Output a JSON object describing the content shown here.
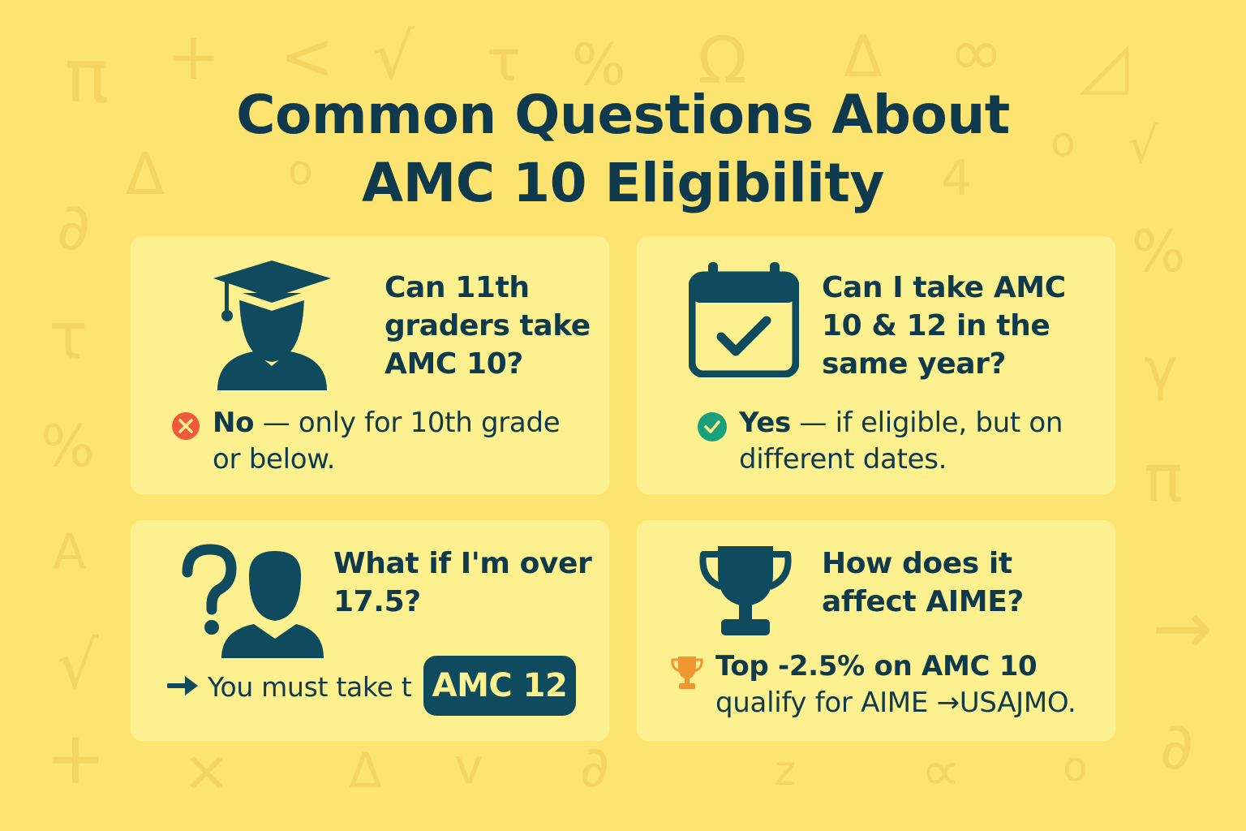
{
  "title": {
    "line1": "Common Questions About",
    "line2": "AMC 10 Eligibility"
  },
  "background_symbols": [
    "π",
    "+",
    "<",
    "√",
    "τ",
    "%",
    "Ω",
    "Δ",
    "∞",
    "◿",
    "Δ",
    "o",
    "o",
    "√",
    "4",
    "∂",
    "%",
    "τ",
    "γ",
    "%",
    "π",
    "A",
    "√",
    "+",
    "×",
    "Δ",
    "v",
    "∂",
    "z",
    "∝",
    "o",
    "∂",
    "→"
  ],
  "cards": [
    {
      "icon": "graduation-student-icon",
      "question": [
        "Can 11th",
        "graders take",
        "AMC 10?"
      ],
      "status_icon": "x-circle-icon",
      "answer_bold": "No",
      "answer_line1": " — only for 10th grade",
      "answer_line2": "or below."
    },
    {
      "icon": "calendar-check-icon",
      "question": [
        "Can I take AMC",
        "10 & 12 in the",
        "same year?"
      ],
      "status_icon": "check-circle-icon",
      "answer_bold": "Yes",
      "answer_line1": " — if eligible, but on",
      "answer_line2": "different dates."
    },
    {
      "icon": "question-person-icon",
      "question": [
        "What if I'm over",
        "17.5?"
      ],
      "status_icon": "arrow-right-icon",
      "answer_line1": "You must take t",
      "pill": "AMC 12"
    },
    {
      "icon": "trophy-icon",
      "question": [
        "How does it",
        "affect AIME?"
      ],
      "status_icon": "small-trophy-icon",
      "answer_line1": "Top -2.5% on AMC 10",
      "answer_line2": "qualify for AIME →USAJMO."
    }
  ],
  "colors": {
    "background": "#fde36f",
    "card": "#fdf08e",
    "text": "#0f3a4d",
    "no": "#ef5a3c",
    "yes": "#1aa07c",
    "trophy_small": "#f0962f"
  }
}
